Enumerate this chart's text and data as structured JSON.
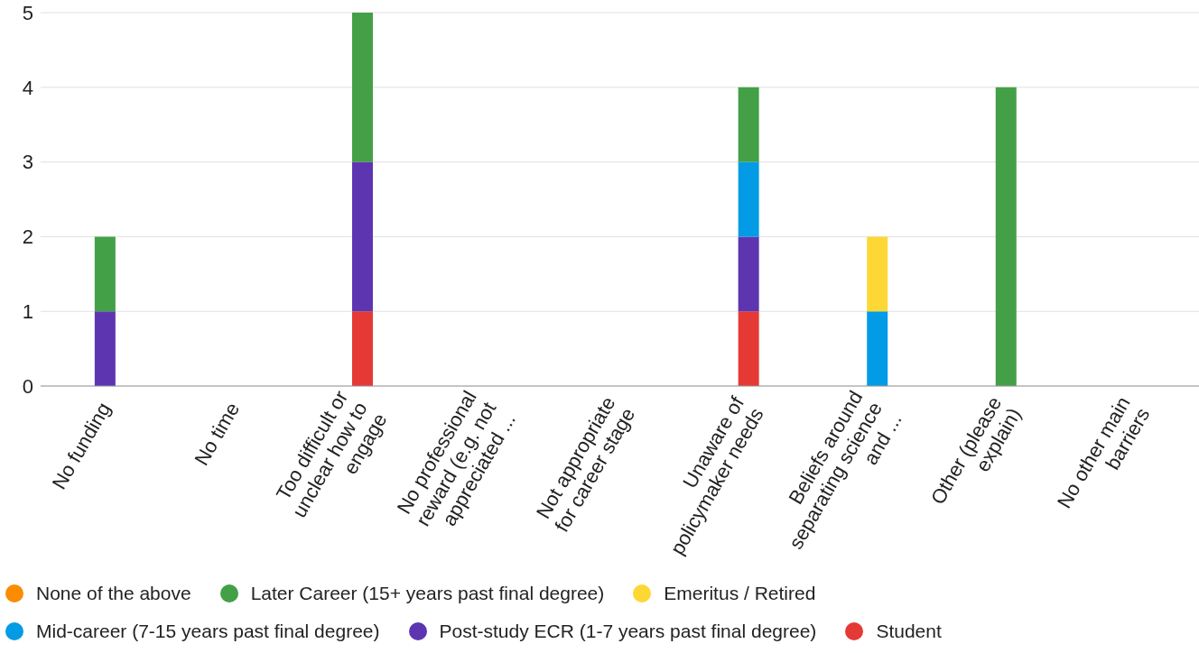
{
  "chart_data": {
    "type": "bar",
    "stacked": true,
    "categories": [
      "No funding",
      "No time",
      "Too difficult or unclear how to engage",
      "No professional reward (e.g. not appreciated ...",
      "Not appropriate for career stage",
      "Unaware of policymaker needs",
      "Beliefs around separating science and ...",
      "Other (please explain)",
      "No other main barriers"
    ],
    "series": [
      {
        "name": "Student",
        "color": "#e53935",
        "values": [
          0,
          0,
          1,
          0,
          0,
          1,
          0,
          0,
          0
        ]
      },
      {
        "name": "Post-study ECR (1-7 years past final degree)",
        "color": "#5e35b1",
        "values": [
          1,
          0,
          2,
          0,
          0,
          1,
          0,
          0,
          0
        ]
      },
      {
        "name": "Mid-career (7-15 years past final degree)",
        "color": "#039be5",
        "values": [
          0,
          0,
          0,
          0,
          0,
          1,
          1,
          0,
          0
        ]
      },
      {
        "name": "Emeritus / Retired",
        "color": "#fdd835",
        "values": [
          0,
          0,
          0,
          0,
          0,
          0,
          1,
          0,
          0
        ]
      },
      {
        "name": "Later Career (15+ years past final degree)",
        "color": "#43a047",
        "values": [
          1,
          0,
          2,
          0,
          0,
          1,
          0,
          4,
          0
        ]
      },
      {
        "name": "None of the above",
        "color": "#fb8c00",
        "values": [
          0,
          0,
          0,
          0,
          0,
          0,
          0,
          0,
          0
        ]
      }
    ],
    "ylim": [
      0,
      5
    ],
    "yticks": [
      0,
      1,
      2,
      3,
      4,
      5
    ],
    "grid": "y",
    "legend": "bottom"
  }
}
